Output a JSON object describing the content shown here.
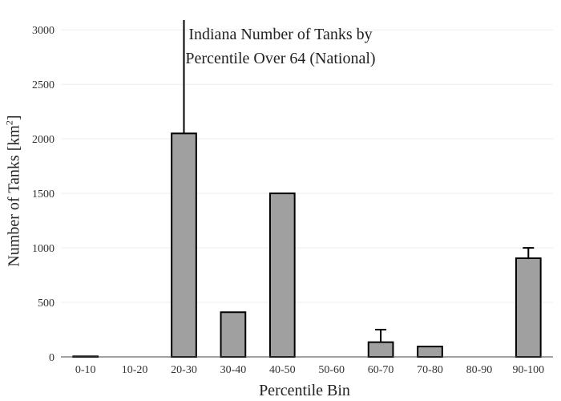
{
  "chart_data": {
    "type": "bar",
    "title_line1": "Indiana Number of Tanks by",
    "title_line2": "Percentile Over 64 (National)",
    "xlabel": "Percentile Bin",
    "ylabel": "Number of Tanks  [km",
    "ylabel_sup": "2",
    "ylabel_close": "]",
    "categories": [
      "0-10",
      "10-20",
      "20-30",
      "30-40",
      "40-50",
      "50-60",
      "60-70",
      "70-80",
      "80-90",
      "90-100"
    ],
    "values": [
      5,
      0,
      2050,
      410,
      1500,
      0,
      135,
      95,
      0,
      905
    ],
    "error_upper": [
      5,
      0,
      3200,
      410,
      1500,
      0,
      250,
      95,
      0,
      1000
    ],
    "ylim": [
      0,
      3090
    ],
    "yticks": [
      0,
      500,
      1000,
      1500,
      2000,
      2500,
      3000
    ],
    "ytick_labels": [
      "0",
      "500",
      "1000",
      "1500",
      "2000",
      "2500",
      "3000"
    ],
    "grid": true,
    "bar_color": "#a0a0a0",
    "bar_edge_color": "#000000",
    "grid_color": "#eeeeee"
  }
}
